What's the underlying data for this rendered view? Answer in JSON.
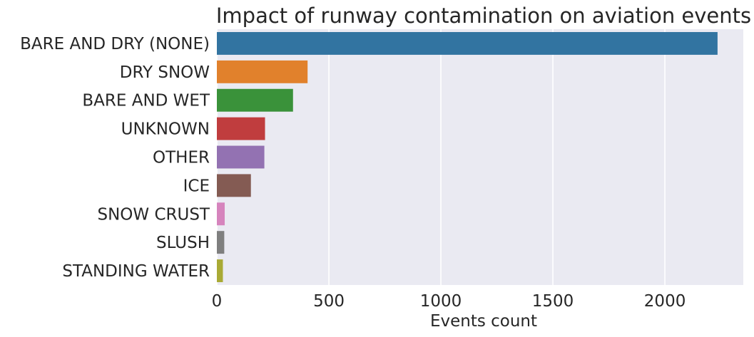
{
  "chart_data": {
    "type": "bar",
    "orientation": "horizontal",
    "title": "Impact of runway contamination on aviation events",
    "xlabel": "Events count",
    "ylabel": "",
    "xlim": [
      0,
      2350
    ],
    "xticks": [
      0,
      500,
      1000,
      1500,
      2000
    ],
    "grid": true,
    "background": "#eaeaf2",
    "categories": [
      "BARE AND DRY (NONE)",
      "DRY SNOW",
      "BARE AND WET",
      "UNKNOWN",
      "OTHER",
      "ICE",
      "SNOW CRUST",
      "SLUSH",
      "STANDING WATER"
    ],
    "values": [
      2235,
      405,
      340,
      215,
      212,
      152,
      35,
      33,
      27
    ],
    "colors": [
      "#3274a1",
      "#e1812c",
      "#3a923a",
      "#c03d3e",
      "#9372b2",
      "#845b53",
      "#d684bd",
      "#7f7f7f",
      "#a9aa35"
    ]
  }
}
